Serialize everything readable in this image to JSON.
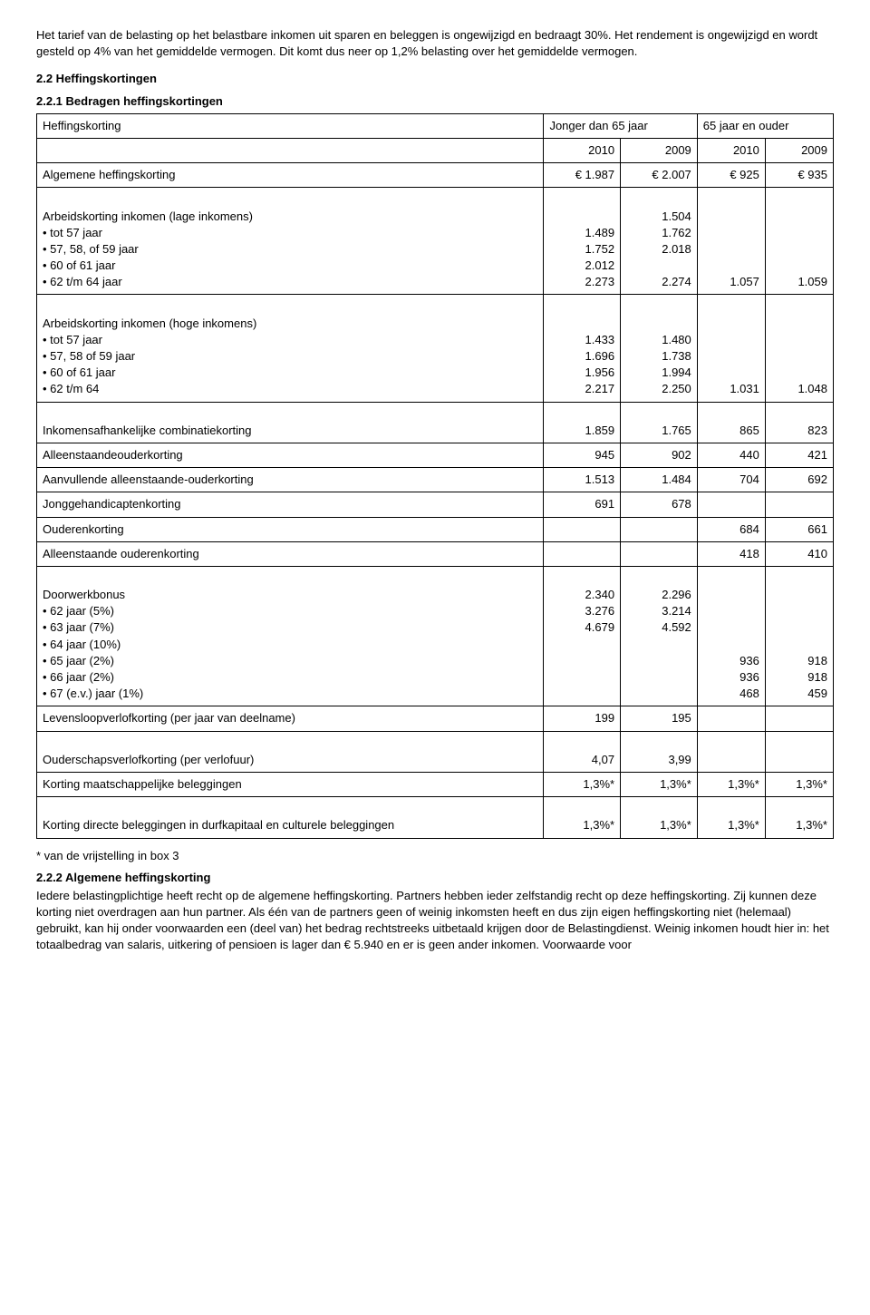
{
  "intro": {
    "p1": "Het tarief van de belasting op het belastbare inkomen uit sparen en beleggen is ongewijzigd en bedraagt 30%. Het rendement is ongewijzigd en wordt gesteld op 4% van het gemiddelde vermogen. Dit komt dus neer op 1,2% belasting over het gemiddelde vermogen."
  },
  "sec22": "2.2 Heffingskortingen",
  "sec221": "2.2.1 Bedragen heffingskortingen",
  "t": {
    "hdr_heffingskorting": "Heffingskorting",
    "hdr_jonger": "Jonger dan 65 jaar",
    "hdr_ouder": "65 jaar en ouder",
    "y2010": "2010",
    "y2009": "2009",
    "row_alg": "Algemene heffingskorting",
    "alg_2010": "€ 1.987",
    "alg_2009": "€ 2.007",
    "alg_o2010": "€ 925",
    "alg_o2009": "€ 935",
    "lab_ark_low": "Arbeidskorting inkomen (lage inkomens)",
    "lab_tot57": "tot 57 jaar",
    "lab_575859": "57, 58, of 59 jaar",
    "lab_6061": "60 of 61 jaar",
    "lab_6264": "62 t/m 64 jaar",
    "low_c1_a": "1.489",
    "low_c1_b": "1.752",
    "low_c1_c": "2.012",
    "low_c1_d": "2.273",
    "low_c2_a": "1.504",
    "low_c2_b": "1.762",
    "low_c2_c": "2.018",
    "low_c2_d": "2.274",
    "low_o2010": "1.057",
    "low_o2009": "1.059",
    "lab_ark_high": "Arbeidskorting inkomen (hoge inkomens)",
    "lab_h_tot57": "tot 57 jaar",
    "lab_h_575859": "57, 58 of 59 jaar",
    "lab_h_6061": "60 of 61 jaar",
    "lab_h_6264": "62 t/m 64",
    "hi_c1_a": "1.433",
    "hi_c1_b": "1.696",
    "hi_c1_c": "1.956",
    "hi_c1_d": "2.217",
    "hi_c2_a": "1.480",
    "hi_c2_b": "1.738",
    "hi_c2_c": "1.994",
    "hi_c2_d": "2.250",
    "hi_o2010": "1.031",
    "hi_o2009": "1.048",
    "lab_ink_comb": "Inkomensafhankelijke combinatiekorting",
    "ic_2010": "1.859",
    "ic_2009": "1.765",
    "ic_o2010": "865",
    "ic_o2009": "823",
    "lab_alleen": "Alleenstaandeouderkorting",
    "al_2010": "945",
    "al_2009": "902",
    "al_o2010": "440",
    "al_o2009": "421",
    "lab_aanv": "Aanvullende alleenstaande-ouderkorting",
    "aa_2010": "1.513",
    "aa_2009": "1.484",
    "aa_o2010": "704",
    "aa_o2009": "692",
    "lab_jong": "Jonggehandicaptenkorting",
    "jg_2010": "691",
    "jg_2009": "678",
    "lab_oud": "Ouderenkorting",
    "ok_2010": "684",
    "ok_2009": "661",
    "lab_aoud": "Alleenstaande ouderenkorting",
    "ak_2010": "418",
    "ak_2009": "410",
    "lab_dwb": "Doorwerkbonus",
    "lab_62_5": "62 jaar (5%)",
    "lab_63_7": "63 jaar (7%)",
    "lab_64_10": "64 jaar (10%)",
    "lab_65_2": "65 jaar (2%)",
    "lab_66_2": "66 jaar (2%)",
    "lab_67_1": "67 (e.v.) jaar (1%)",
    "dwb_c1_a": "2.340",
    "dwb_c1_b": "3.276",
    "dwb_c1_c": "4.679",
    "dwb_c2_a": "2.296",
    "dwb_c2_b": "3.214",
    "dwb_c2_c": "4.592",
    "dwb_o10_a": "936",
    "dwb_o10_b": "936",
    "dwb_o10_c": "468",
    "dwb_o09_a": "918",
    "dwb_o09_b": "918",
    "dwb_o09_c": "459",
    "lab_lev": "Levensloopverlofkorting (per jaar van deelname)",
    "lev_2010": "199",
    "lev_2009": "195",
    "lab_osv": "Ouderschapsverlofkorting (per verlofuur)",
    "osv_2010": "4,07",
    "osv_2009": "3,99",
    "lab_kmb": "Korting maatschappelijke beleggingen",
    "kmb": "1,3%*",
    "lab_kdb": "Korting directe beleggingen in durfkapitaal en culturele beleggingen",
    "kdb": "1,3%*"
  },
  "footnote": "* van de vrijstelling in box 3",
  "sec222": "2.2.2 Algemene heffingskorting",
  "p222": "Iedere belastingplichtige heeft recht op de algemene heffingskorting. Partners hebben ieder zelfstandig recht op deze heffingskorting. Zij kunnen deze korting niet overdragen aan hun partner. Als één van de partners geen of weinig inkomsten heeft en dus zijn eigen heffingskorting niet (helemaal) gebruikt, kan hij onder voorwaarden een (deel van) het bedrag rechtstreeks uitbetaald krijgen door de Belastingdienst. Weinig inkomen houdt hier in: het totaalbedrag van salaris, uitkering of pensioen is lager dan € 5.940 en er is geen ander inkomen. Voorwaarde voor"
}
